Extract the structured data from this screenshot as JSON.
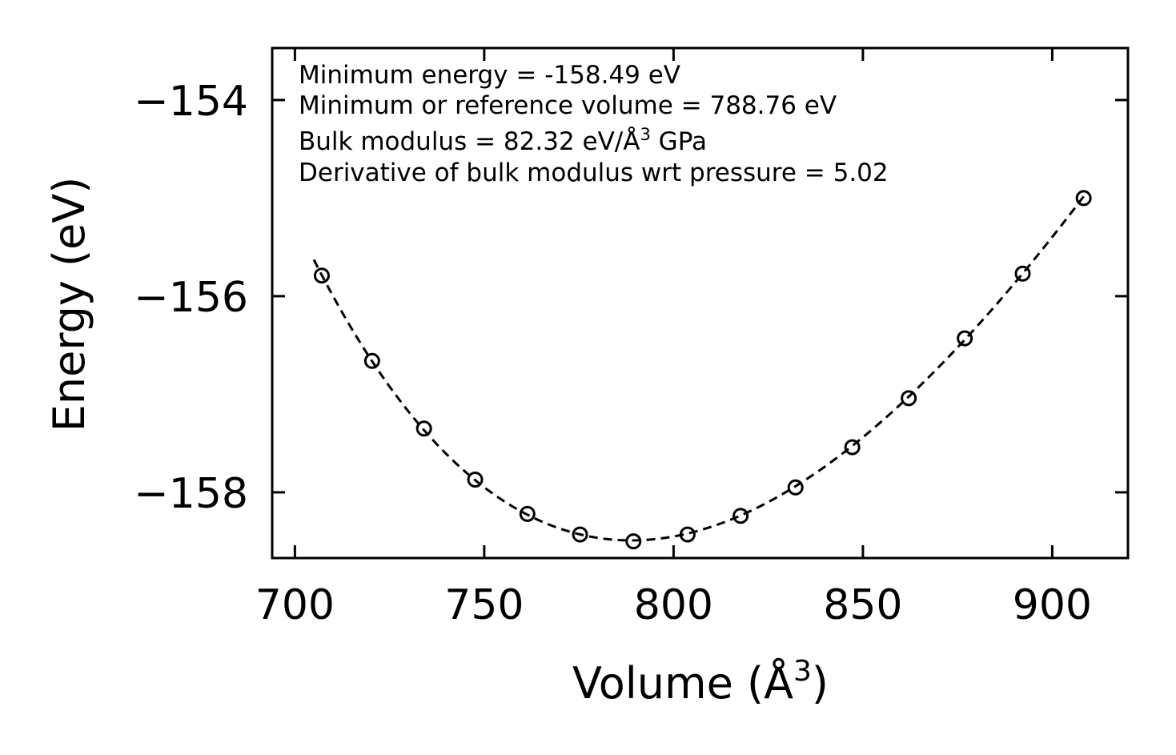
{
  "chart_data": {
    "type": "scatter",
    "title": "",
    "xlabel": "Volume (Å",
    "xlabel_sup": "3",
    "xlabel_tail": ")",
    "ylabel": "Energy (eV)",
    "xlim": [
      694,
      920
    ],
    "ylim": [
      -158.67,
      -153.47
    ],
    "xticks": [
      700,
      750,
      800,
      850,
      900
    ],
    "xtick_labels": [
      "700",
      "750",
      "800",
      "850",
      "900"
    ],
    "yticks": [
      -154,
      -156,
      -158
    ],
    "ytick_labels": [
      "−154",
      "−156",
      "−158"
    ],
    "grid": false,
    "series": [
      {
        "name": "data",
        "marker": "open-circle",
        "color": "#000000",
        "x": [
          707.1,
          720.4,
          734.1,
          747.6,
          761.4,
          775.3,
          789.4,
          803.7,
          817.7,
          832.2,
          847.2,
          862.1,
          876.9,
          892.2,
          908.3
        ],
        "y": [
          -155.79,
          -156.66,
          -157.35,
          -157.87,
          -158.22,
          -158.43,
          -158.5,
          -158.43,
          -158.24,
          -157.95,
          -157.54,
          -157.04,
          -156.43,
          -155.77,
          -155.0
        ]
      },
      {
        "name": "fit",
        "style": "dashed",
        "color": "#000000",
        "fit": {
          "e0": -158.49,
          "v0": 788.76,
          "b_gpa": 82.32,
          "bp": 5.02
        },
        "x_range": [
          705.0,
          909.0
        ]
      }
    ],
    "annotations": {
      "line1": "Minimum energy = -158.49 eV",
      "line2": "Minimum or reference volume = 788.76 eV",
      "line3_pre": "Bulk modulus = 82.32 eV/Å",
      "line3_sup": "3",
      "line3_post": " GPa",
      "line4": "Derivative of bulk modulus wrt pressure = 5.02"
    }
  }
}
